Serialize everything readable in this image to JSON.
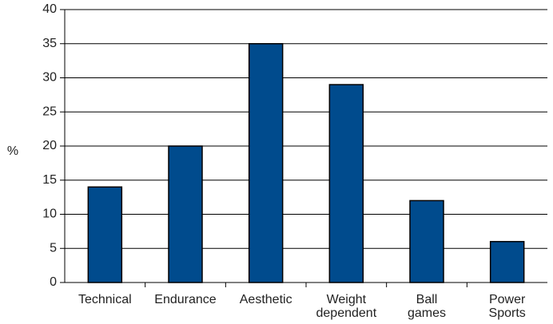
{
  "chart_data": {
    "type": "bar",
    "title": "",
    "xlabel": "",
    "ylabel": "%",
    "ylim": [
      0,
      40
    ],
    "yticks": [
      0,
      5,
      10,
      15,
      20,
      25,
      30,
      35,
      40
    ],
    "grid": true,
    "legend": "none",
    "categories": [
      [
        "Technical"
      ],
      [
        "Endurance"
      ],
      [
        "Aesthetic"
      ],
      [
        "Weight",
        "dependent"
      ],
      [
        "Ball",
        "games"
      ],
      [
        "Power",
        "Sports"
      ]
    ],
    "values": [
      14,
      20,
      35,
      29,
      12,
      6
    ],
    "colors": {
      "bar": "#004b8d",
      "bar_stroke": "#000000",
      "grid": "#000000",
      "axis": "#000000"
    }
  }
}
